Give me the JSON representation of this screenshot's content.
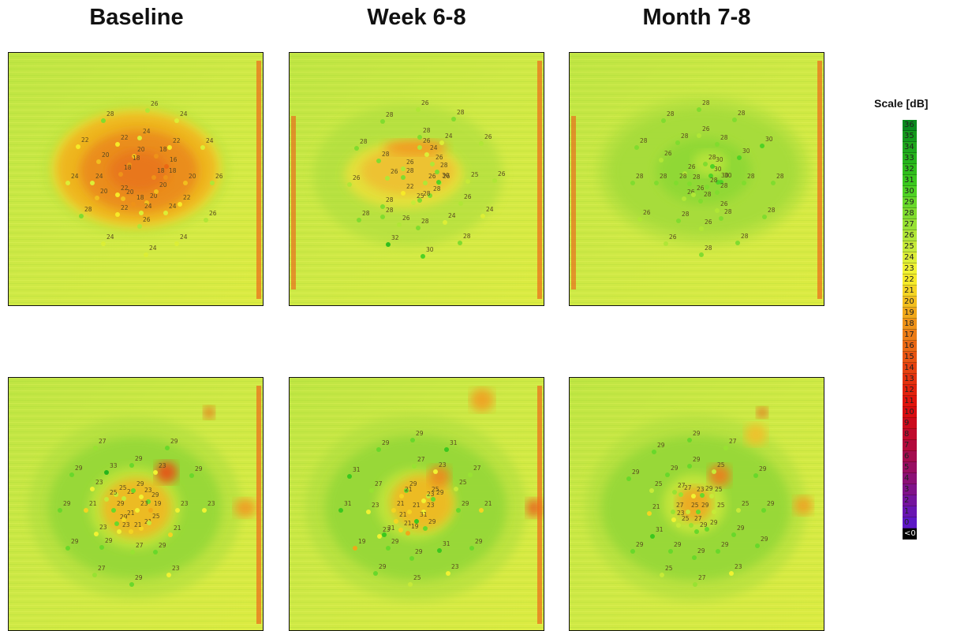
{
  "columns": [
    "Baseline",
    "Week 6-8",
    "Month 7-8"
  ],
  "scale": {
    "title": "Scale [dB]",
    "values": [
      "36",
      "35",
      "34",
      "33",
      "32",
      "31",
      "30",
      "29",
      "28",
      "27",
      "26",
      "25",
      "24",
      "23",
      "22",
      "21",
      "20",
      "19",
      "18",
      "17",
      "16",
      "15",
      "14",
      "13",
      "12",
      "11",
      "10",
      "9",
      "8",
      "7",
      "6",
      "5",
      "4",
      "3",
      "2",
      "1",
      "0",
      "<0"
    ],
    "colors": [
      "#0a8a1e",
      "#149a1c",
      "#1ea81c",
      "#26b41c",
      "#30be1c",
      "#3ac81e",
      "#4ed224",
      "#68d82a",
      "#80dc2e",
      "#98e232",
      "#b0e636",
      "#c6ea38",
      "#dcee36",
      "#f0f232",
      "#f6ea28",
      "#f4d422",
      "#f2be1e",
      "#f0a81a",
      "#ee9218",
      "#ec7c16",
      "#ea6814",
      "#e85412",
      "#e64210",
      "#e4320e",
      "#e2220c",
      "#e0140c",
      "#d80c10",
      "#cc0a1c",
      "#c00a2c",
      "#b20a3c",
      "#a40c4e",
      "#980e62",
      "#8c1076",
      "#80128a",
      "#74149e",
      "#6816b2",
      "#5c18c6",
      "#000000"
    ]
  },
  "panels": [
    {
      "id": "baseline-top",
      "points": [
        {
          "v": "26"
        },
        {
          "v": "28"
        },
        {
          "v": "24"
        },
        {
          "v": "22"
        },
        {
          "v": "22"
        },
        {
          "v": "24"
        },
        {
          "v": "22"
        },
        {
          "v": "24"
        },
        {
          "v": "20"
        },
        {
          "v": "20"
        },
        {
          "v": "18"
        },
        {
          "v": "18"
        },
        {
          "v": "16"
        },
        {
          "v": "24"
        },
        {
          "v": "24"
        },
        {
          "v": "18"
        },
        {
          "v": "18"
        },
        {
          "v": "18"
        },
        {
          "v": "20"
        },
        {
          "v": "26"
        },
        {
          "v": "20"
        },
        {
          "v": "20"
        },
        {
          "v": "20"
        },
        {
          "v": "18"
        },
        {
          "v": "22"
        },
        {
          "v": "28"
        },
        {
          "v": "22"
        },
        {
          "v": "24"
        },
        {
          "v": "24"
        },
        {
          "v": "26"
        },
        {
          "v": "24"
        },
        {
          "v": "26"
        },
        {
          "v": "24"
        },
        {
          "v": "24"
        },
        {
          "v": "22"
        },
        {
          "v": "20"
        }
      ]
    },
    {
      "id": "week-top",
      "points": [
        {
          "v": "26"
        },
        {
          "v": "28"
        },
        {
          "v": "28"
        },
        {
          "v": "28"
        },
        {
          "v": "24"
        },
        {
          "v": "26"
        },
        {
          "v": "28"
        },
        {
          "v": "26"
        },
        {
          "v": "28"
        },
        {
          "v": "26"
        },
        {
          "v": "26"
        },
        {
          "v": "28"
        },
        {
          "v": "28"
        },
        {
          "v": "26"
        },
        {
          "v": "26"
        },
        {
          "v": "26"
        },
        {
          "v": "30"
        },
        {
          "v": "25"
        },
        {
          "v": "26"
        },
        {
          "v": "22"
        },
        {
          "v": "28"
        },
        {
          "v": "28"
        },
        {
          "v": "25"
        },
        {
          "v": "28"
        },
        {
          "v": "26"
        },
        {
          "v": "28"
        },
        {
          "v": "24"
        },
        {
          "v": "28"
        },
        {
          "v": "26"
        },
        {
          "v": "24"
        },
        {
          "v": "32"
        },
        {
          "v": "28"
        },
        {
          "v": "30"
        },
        {
          "v": "28"
        },
        {
          "v": "26"
        },
        {
          "v": "24"
        }
      ]
    },
    {
      "id": "month-top",
      "points": [
        {
          "v": "28"
        },
        {
          "v": "28"
        },
        {
          "v": "28"
        },
        {
          "v": "26"
        },
        {
          "v": "28"
        },
        {
          "v": "28"
        },
        {
          "v": "28"
        },
        {
          "v": "30"
        },
        {
          "v": "26"
        },
        {
          "v": "28"
        },
        {
          "v": "30"
        },
        {
          "v": "30"
        },
        {
          "v": "30"
        },
        {
          "v": "26"
        },
        {
          "v": "28"
        },
        {
          "v": "30"
        },
        {
          "v": "30"
        },
        {
          "v": "28"
        },
        {
          "v": "28"
        },
        {
          "v": "28"
        },
        {
          "v": "26"
        },
        {
          "v": "28"
        },
        {
          "v": "28"
        },
        {
          "v": "26"
        },
        {
          "v": "28"
        },
        {
          "v": "26"
        },
        {
          "v": "28"
        },
        {
          "v": "26"
        },
        {
          "v": "28"
        },
        {
          "v": "28"
        },
        {
          "v": "26"
        },
        {
          "v": "28"
        },
        {
          "v": "28"
        },
        {
          "v": "28"
        },
        {
          "v": "28"
        },
        {
          "v": "26"
        }
      ]
    },
    {
      "id": "baseline-bottom",
      "points": [
        {
          "v": "27"
        },
        {
          "v": "29"
        },
        {
          "v": "29"
        },
        {
          "v": "33"
        },
        {
          "v": "29"
        },
        {
          "v": "23"
        },
        {
          "v": "29"
        },
        {
          "v": "29"
        },
        {
          "v": "21"
        },
        {
          "v": "23"
        },
        {
          "v": "25"
        },
        {
          "v": "25"
        },
        {
          "v": "23"
        },
        {
          "v": "29"
        },
        {
          "v": "29"
        },
        {
          "v": "23"
        },
        {
          "v": "19"
        },
        {
          "v": "23"
        },
        {
          "v": "23"
        },
        {
          "v": "29"
        },
        {
          "v": "23"
        },
        {
          "v": "21"
        },
        {
          "v": "21"
        },
        {
          "v": "25"
        },
        {
          "v": "21"
        },
        {
          "v": "23"
        },
        {
          "v": "29"
        },
        {
          "v": "29"
        },
        {
          "v": "27"
        },
        {
          "v": "29"
        },
        {
          "v": "27"
        },
        {
          "v": "29"
        },
        {
          "v": "23"
        },
        {
          "v": "25"
        },
        {
          "v": "29"
        },
        {
          "v": "21"
        }
      ]
    },
    {
      "id": "week-bottom",
      "points": [
        {
          "v": "29"
        },
        {
          "v": "31"
        },
        {
          "v": "29"
        },
        {
          "v": "27"
        },
        {
          "v": "31"
        },
        {
          "v": "27"
        },
        {
          "v": "23"
        },
        {
          "v": "27"
        },
        {
          "v": "29"
        },
        {
          "v": "25"
        },
        {
          "v": "21"
        },
        {
          "v": "25"
        },
        {
          "v": "23"
        },
        {
          "v": "29"
        },
        {
          "v": "31"
        },
        {
          "v": "23"
        },
        {
          "v": "21"
        },
        {
          "v": "21"
        },
        {
          "v": "23"
        },
        {
          "v": "29"
        },
        {
          "v": "21"
        },
        {
          "v": "23"
        },
        {
          "v": "31"
        },
        {
          "v": "19"
        },
        {
          "v": "21"
        },
        {
          "v": "19"
        },
        {
          "v": "31"
        },
        {
          "v": "29"
        },
        {
          "v": "29"
        },
        {
          "v": "29"
        },
        {
          "v": "31"
        },
        {
          "v": "29"
        },
        {
          "v": "29"
        },
        {
          "v": "25"
        },
        {
          "v": "23"
        },
        {
          "v": "21"
        }
      ]
    },
    {
      "id": "month-bottom",
      "points": [
        {
          "v": "29"
        },
        {
          "v": "29"
        },
        {
          "v": "27"
        },
        {
          "v": "29"
        },
        {
          "v": "29"
        },
        {
          "v": "29"
        },
        {
          "v": "25"
        },
        {
          "v": "29"
        },
        {
          "v": "25"
        },
        {
          "v": "27"
        },
        {
          "v": "27"
        },
        {
          "v": "23"
        },
        {
          "v": "29"
        },
        {
          "v": "25"
        },
        {
          "v": "21"
        },
        {
          "v": "27"
        },
        {
          "v": "25"
        },
        {
          "v": "29"
        },
        {
          "v": "25"
        },
        {
          "v": "25"
        },
        {
          "v": "29"
        },
        {
          "v": "23"
        },
        {
          "v": "25"
        },
        {
          "v": "27"
        },
        {
          "v": "29"
        },
        {
          "v": "31"
        },
        {
          "v": "29"
        },
        {
          "v": "29"
        },
        {
          "v": "29"
        },
        {
          "v": "29"
        },
        {
          "v": "29"
        },
        {
          "v": "29"
        },
        {
          "v": "29"
        },
        {
          "v": "25"
        },
        {
          "v": "27"
        },
        {
          "v": "23"
        }
      ]
    }
  ]
}
